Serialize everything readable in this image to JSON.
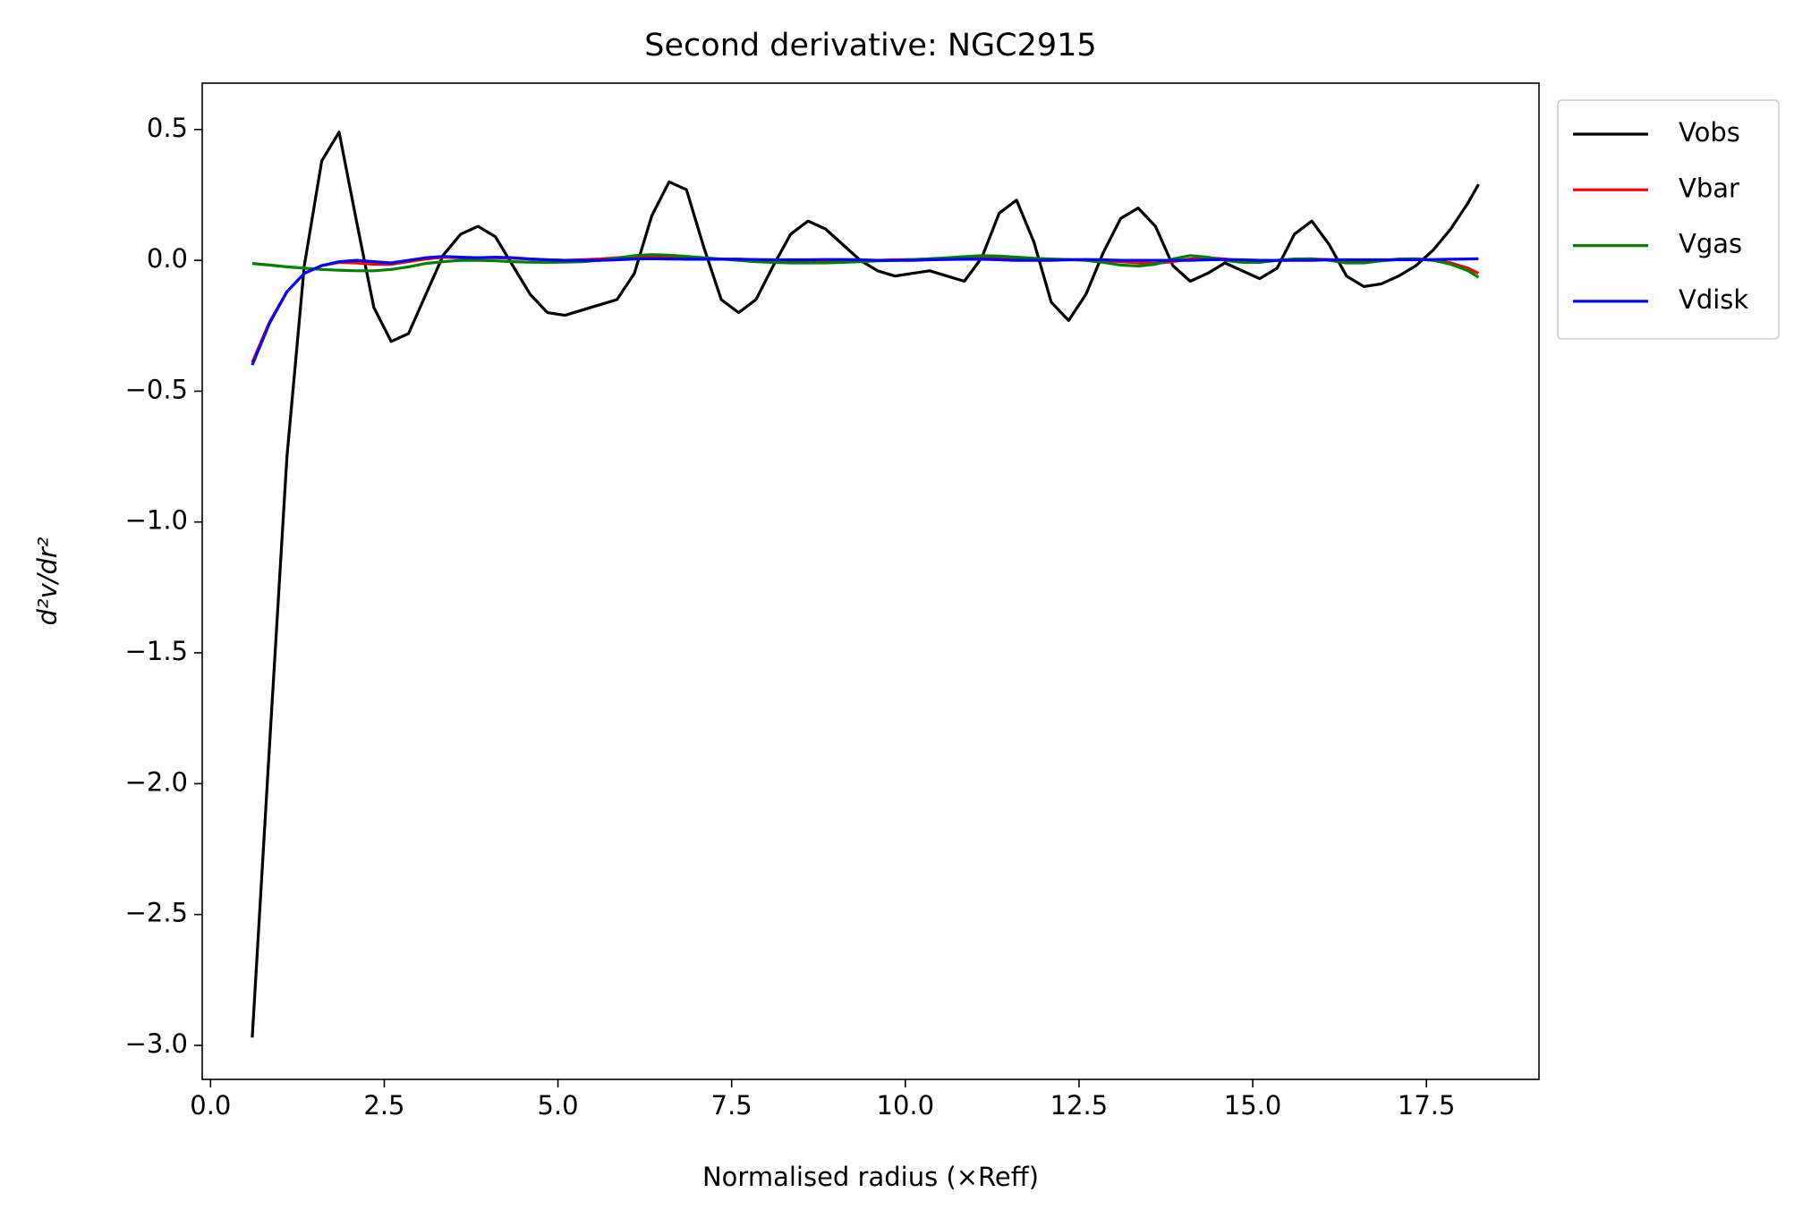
{
  "chart_data": {
    "type": "line",
    "title": "Second derivative: NGC2915",
    "xlabel": "Normalised radius (×Reff)",
    "ylabel": "d²v/dr²",
    "x": [
      0.6,
      0.85,
      1.1,
      1.35,
      1.6,
      1.85,
      2.1,
      2.35,
      2.6,
      2.85,
      3.1,
      3.35,
      3.6,
      3.85,
      4.1,
      4.35,
      4.6,
      4.85,
      5.1,
      5.35,
      5.6,
      5.85,
      6.1,
      6.35,
      6.6,
      6.85,
      7.1,
      7.35,
      7.6,
      7.85,
      8.1,
      8.35,
      8.6,
      8.85,
      9.1,
      9.35,
      9.6,
      9.85,
      10.1,
      10.35,
      10.6,
      10.85,
      11.1,
      11.35,
      11.6,
      11.85,
      12.1,
      12.35,
      12.6,
      12.85,
      13.1,
      13.35,
      13.6,
      13.85,
      14.1,
      14.35,
      14.6,
      14.85,
      15.1,
      15.35,
      15.6,
      15.85,
      16.1,
      16.35,
      16.6,
      16.85,
      17.1,
      17.35,
      17.6,
      17.85,
      18.1,
      18.25
    ],
    "series": [
      {
        "name": "Vobs",
        "color": "#000000",
        "values": [
          -2.97,
          -1.85,
          -0.75,
          -0.02,
          0.38,
          0.49,
          0.15,
          -0.18,
          -0.31,
          -0.28,
          -0.13,
          0.02,
          0.1,
          0.13,
          0.09,
          -0.02,
          -0.13,
          -0.2,
          -0.21,
          -0.19,
          -0.17,
          -0.15,
          -0.05,
          0.17,
          0.3,
          0.27,
          0.05,
          -0.15,
          -0.2,
          -0.15,
          -0.02,
          0.1,
          0.15,
          0.12,
          0.06,
          0.0,
          -0.04,
          -0.06,
          -0.05,
          -0.04,
          -0.06,
          -0.08,
          0.01,
          0.18,
          0.23,
          0.07,
          -0.16,
          -0.23,
          -0.13,
          0.03,
          0.16,
          0.2,
          0.13,
          -0.02,
          -0.08,
          -0.05,
          -0.01,
          -0.04,
          -0.07,
          -0.03,
          0.1,
          0.15,
          0.06,
          -0.06,
          -0.1,
          -0.09,
          -0.06,
          -0.02,
          0.04,
          0.12,
          0.22,
          0.29
        ]
      },
      {
        "name": "Vbar",
        "color": "#ff0000",
        "values": [
          -0.39,
          -0.235,
          -0.12,
          -0.05,
          -0.02,
          -0.008,
          -0.01,
          -0.015,
          -0.015,
          -0.005,
          0.005,
          0.012,
          0.01,
          0.01,
          0.01,
          0.008,
          0.005,
          0.002,
          0.0,
          0.002,
          0.005,
          0.01,
          0.015,
          0.014,
          0.01,
          0.008,
          0.006,
          0.005,
          0.004,
          0.002,
          0.0,
          -0.002,
          -0.003,
          -0.002,
          0.0,
          0.0,
          0.0,
          0.002,
          0.003,
          0.005,
          0.006,
          0.008,
          0.01,
          0.01,
          0.008,
          0.005,
          0.003,
          0.002,
          0.002,
          0.0,
          -0.005,
          -0.01,
          -0.012,
          -0.005,
          0.005,
          0.01,
          0.005,
          -0.002,
          -0.005,
          0.0,
          0.003,
          0.005,
          0.003,
          -0.003,
          -0.005,
          -0.002,
          0.003,
          0.005,
          0.0,
          -0.01,
          -0.03,
          -0.05
        ]
      },
      {
        "name": "Vgas",
        "color": "#008000",
        "values": [
          -0.012,
          -0.018,
          -0.025,
          -0.03,
          -0.035,
          -0.038,
          -0.04,
          -0.04,
          -0.035,
          -0.025,
          -0.012,
          -0.005,
          0.0,
          0.0,
          -0.002,
          -0.005,
          -0.007,
          -0.008,
          -0.007,
          -0.005,
          0.0,
          0.008,
          0.018,
          0.022,
          0.02,
          0.015,
          0.01,
          0.005,
          0.0,
          -0.005,
          -0.008,
          -0.01,
          -0.01,
          -0.01,
          -0.008,
          -0.005,
          -0.002,
          0.0,
          0.003,
          0.006,
          0.01,
          0.014,
          0.018,
          0.016,
          0.012,
          0.008,
          0.005,
          0.003,
          0.0,
          -0.008,
          -0.018,
          -0.022,
          -0.015,
          0.005,
          0.018,
          0.012,
          0.0,
          -0.008,
          -0.008,
          0.0,
          0.005,
          0.006,
          0.0,
          -0.01,
          -0.01,
          -0.002,
          0.005,
          0.006,
          0.0,
          -0.015,
          -0.04,
          -0.065
        ]
      },
      {
        "name": "Vdisk",
        "color": "#0000ff",
        "values": [
          -0.4,
          -0.24,
          -0.12,
          -0.05,
          -0.02,
          -0.005,
          0.0,
          -0.005,
          -0.01,
          0.0,
          0.01,
          0.015,
          0.012,
          0.01,
          0.012,
          0.01,
          0.005,
          0.002,
          0.0,
          0.0,
          0.0,
          0.002,
          0.005,
          0.006,
          0.005,
          0.004,
          0.004,
          0.004,
          0.004,
          0.003,
          0.002,
          0.002,
          0.002,
          0.003,
          0.003,
          0.002,
          0.0,
          0.0,
          0.0,
          0.002,
          0.003,
          0.004,
          0.004,
          0.002,
          0.0,
          0.0,
          0.0,
          0.002,
          0.003,
          0.002,
          0.0,
          0.0,
          0.0,
          0.0,
          0.0,
          0.002,
          0.003,
          0.002,
          0.0,
          0.0,
          0.0,
          0.0,
          0.002,
          0.002,
          0.002,
          0.002,
          0.002,
          0.002,
          0.003,
          0.004,
          0.005,
          0.006
        ]
      }
    ],
    "xlim": [
      -0.12,
      19.12
    ],
    "ylim": [
      -3.13,
      0.677
    ],
    "xticks": [
      {
        "value": 0,
        "label": "0.0"
      },
      2.5,
      {
        "value": 5,
        "label": "5.0"
      },
      7.5,
      {
        "value": 10,
        "label": "10.0"
      },
      12.5,
      {
        "value": 15,
        "label": "15.0"
      },
      17.5
    ],
    "yticks": [
      0.5,
      {
        "value": 0,
        "label": "0.0"
      },
      {
        "value": -0.5,
        "label": "−0.5"
      },
      {
        "value": -1,
        "label": "−1.0"
      },
      {
        "value": -1.5,
        "label": "−1.5"
      },
      {
        "value": -2,
        "label": "−2.0"
      },
      {
        "value": -2.5,
        "label": "−2.5"
      },
      {
        "value": -3,
        "label": "−3.0"
      }
    ],
    "legend": "outside-upper-right",
    "grid": false
  }
}
